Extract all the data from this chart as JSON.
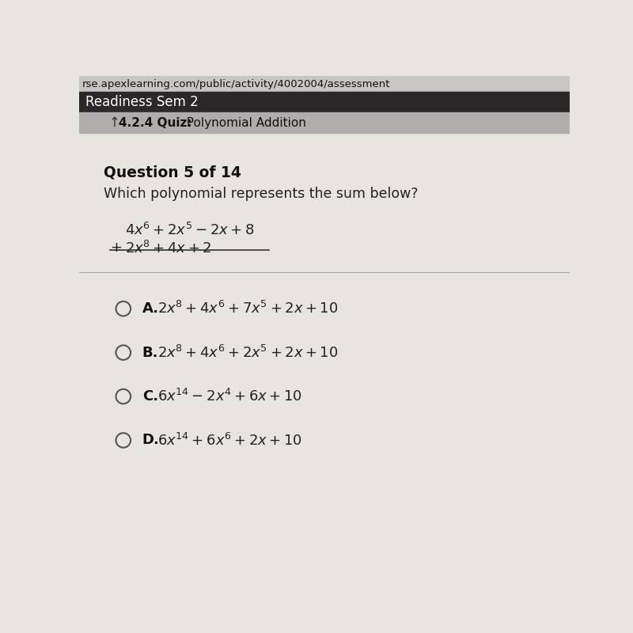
{
  "url_bar_text": "rse.apexlearning.com/public/activity/4002004/assessment",
  "header1_text": "Readiness Sem 2",
  "header2_bold": "4.2.4 Quiz:",
  "header2_normal": "  Polynomial Addition",
  "question_label": "Question 5 of 14",
  "question_text": "Which polynomial represents the sum below?",
  "bg_color": "#dcdad8",
  "url_bar_color": "#c8c6c4",
  "header1_bg": "#2a2828",
  "header2_bg": "#b0aeac",
  "divider_color": "#aaaaaa",
  "answer_circle_color": "#555555",
  "content_bg": "#e8e5e0"
}
